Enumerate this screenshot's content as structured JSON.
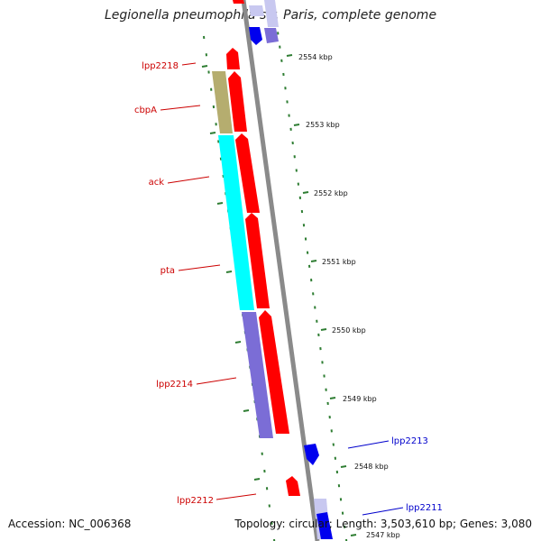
{
  "title": "Legionella pneumophila str. Paris, complete genome",
  "footer": {
    "accession": "Accession: NC_006368",
    "summary": "Topology: circular; Length: 3,503,610 bp; Genes: 3,080"
  },
  "colors": {
    "backbone": "#8a8a8a",
    "tick": "#2e7d32",
    "label_reverse": "#cc0000",
    "label_forward": "#0000cc",
    "gene_red": "#ff0000",
    "gene_blue": "#0000ee",
    "gene_khaki": "#b5ad6f",
    "gene_cyan": "#00ffff",
    "gene_slate": "#7b6dd6",
    "gene_lavender": "#c8c8f0"
  },
  "tick_labels": [
    {
      "kbp": 2554,
      "text": "2554 kbp"
    },
    {
      "kbp": 2553,
      "text": "2553 kbp"
    },
    {
      "kbp": 2552,
      "text": "2552 kbp"
    },
    {
      "kbp": 2551,
      "text": "2551 kbp"
    },
    {
      "kbp": 2550,
      "text": "2550 kbp"
    },
    {
      "kbp": 2549,
      "text": "2549 kbp"
    },
    {
      "kbp": 2548,
      "text": "2548 kbp"
    },
    {
      "kbp": 2547,
      "text": "2547 kbp"
    }
  ],
  "gene_labels": [
    {
      "name": "lpp2218",
      "strand": "reverse"
    },
    {
      "name": "cbpA",
      "strand": "reverse"
    },
    {
      "name": "ack",
      "strand": "reverse"
    },
    {
      "name": "pta",
      "strand": "reverse"
    },
    {
      "name": "lpp2214",
      "strand": "reverse"
    },
    {
      "name": "lpp2212",
      "strand": "reverse"
    },
    {
      "name": "lpp2213",
      "strand": "forward"
    },
    {
      "name": "lpp2211",
      "strand": "forward"
    }
  ]
}
